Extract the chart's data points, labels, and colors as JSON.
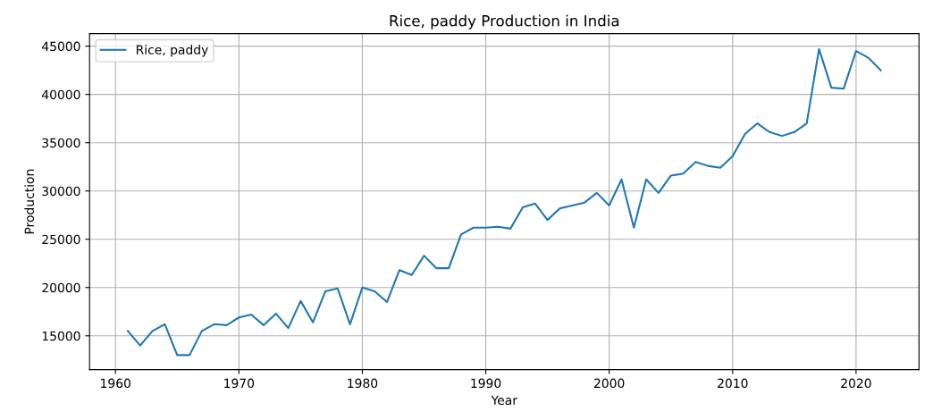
{
  "chart_data": {
    "type": "line",
    "title": "Rice, paddy Production in India",
    "xlabel": "Year",
    "ylabel": "Production",
    "x": [
      1961,
      1962,
      1963,
      1964,
      1965,
      1966,
      1967,
      1968,
      1969,
      1970,
      1971,
      1972,
      1973,
      1974,
      1975,
      1976,
      1977,
      1978,
      1979,
      1980,
      1981,
      1982,
      1983,
      1984,
      1985,
      1986,
      1987,
      1988,
      1989,
      1990,
      1991,
      1992,
      1993,
      1994,
      1995,
      1996,
      1997,
      1998,
      1999,
      2000,
      2001,
      2002,
      2003,
      2004,
      2005,
      2006,
      2007,
      2008,
      2009,
      2010,
      2011,
      2012,
      2013,
      2014,
      2015,
      2016,
      2017,
      2018,
      2019,
      2020,
      2021,
      2022
    ],
    "series": [
      {
        "name": "Rice, paddy",
        "color": "#1f77b4",
        "values": [
          15500,
          14000,
          15500,
          16200,
          13000,
          13000,
          15500,
          16200,
          16100,
          16900,
          17200,
          16100,
          17300,
          15800,
          18600,
          16400,
          19600,
          19900,
          16200,
          20000,
          19600,
          18500,
          21800,
          21300,
          23300,
          22000,
          22000,
          25500,
          26200,
          26200,
          26300,
          26100,
          28300,
          28700,
          27000,
          28200,
          28500,
          28800,
          29800,
          28500,
          31200,
          26200,
          31200,
          29800,
          31600,
          31800,
          33000,
          32600,
          32400,
          33600,
          35900,
          37000,
          36100,
          35700,
          36100,
          37000,
          44700,
          40700,
          40600,
          44500,
          43800,
          42500
        ]
      }
    ],
    "xlim": [
      1957.9,
      2025.1
    ],
    "xticks": [
      1960,
      1970,
      1980,
      1990,
      2000,
      2010,
      2020
    ],
    "ylim": [
      11500,
      46300
    ],
    "yticks": [
      15000,
      20000,
      25000,
      30000,
      35000,
      40000,
      45000
    ],
    "grid": true,
    "legend": "top left"
  }
}
